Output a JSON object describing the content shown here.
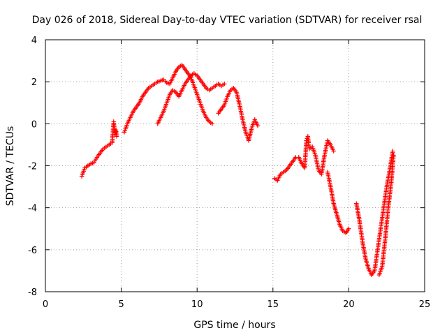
{
  "chart_data": {
    "type": "scatter",
    "title": "Day 026 of 2018, Sidereal Day-to-day VTEC variation (SDTVAR) for receiver rsal",
    "xlabel": "GPS time / hours",
    "ylabel": "SDTVAR / TECUs",
    "xlim": [
      0,
      25
    ],
    "ylim": [
      -8,
      4
    ],
    "xticks": [
      "0",
      "5",
      "10",
      "15",
      "20",
      "25"
    ],
    "yticks": [
      "-8",
      "-6",
      "-4",
      "-2",
      "0",
      "2",
      "4"
    ],
    "grid": true,
    "marker": "+",
    "color": "#ff0000",
    "series": [
      {
        "x": [
          2.4,
          2.6,
          2.8,
          3.0,
          3.2,
          3.4,
          3.6,
          3.8,
          4.0,
          4.2,
          4.4,
          4.5,
          4.55,
          4.6,
          4.65,
          4.7
        ],
        "y": [
          -2.5,
          -2.1,
          -2.0,
          -1.9,
          -1.85,
          -1.6,
          -1.4,
          -1.2,
          -1.1,
          -1.0,
          -0.9,
          0.1,
          -0.2,
          -0.5,
          -0.3,
          -0.6
        ]
      },
      {
        "x": [
          5.2,
          5.4,
          5.6,
          5.8,
          6.0,
          6.2,
          6.4,
          6.6,
          6.8,
          7.0,
          7.2,
          7.4,
          7.6,
          7.8,
          8.0,
          8.2,
          8.4,
          8.6,
          8.8,
          9.0,
          9.2,
          9.4,
          9.6,
          9.8,
          10.0,
          10.2,
          10.4,
          10.6,
          10.8,
          11.0
        ],
        "y": [
          -0.4,
          0.0,
          0.3,
          0.6,
          0.8,
          1.0,
          1.3,
          1.5,
          1.7,
          1.8,
          1.9,
          2.0,
          2.05,
          2.1,
          1.95,
          1.9,
          2.2,
          2.5,
          2.7,
          2.8,
          2.6,
          2.4,
          2.2,
          1.8,
          1.4,
          1.0,
          0.6,
          0.3,
          0.1,
          0.0
        ]
      },
      {
        "x": [
          7.4,
          7.6,
          7.8,
          8.0,
          8.2,
          8.4,
          8.6,
          8.8,
          9.0,
          9.2,
          9.4,
          9.6,
          9.8,
          10.0,
          10.2,
          10.4,
          10.6,
          10.8,
          11.0,
          11.2,
          11.4,
          11.6,
          11.8
        ],
        "y": [
          0.0,
          0.3,
          0.6,
          1.0,
          1.4,
          1.6,
          1.5,
          1.3,
          1.6,
          1.9,
          2.1,
          2.3,
          2.4,
          2.3,
          2.1,
          1.9,
          1.7,
          1.6,
          1.7,
          1.8,
          1.9,
          1.8,
          1.9
        ]
      },
      {
        "x": [
          11.4,
          11.6,
          11.8,
          12.0,
          12.2,
          12.4,
          12.6,
          12.8,
          13.0,
          13.2,
          13.4,
          13.6,
          13.8,
          14.0
        ],
        "y": [
          0.5,
          0.7,
          0.9,
          1.3,
          1.6,
          1.7,
          1.5,
          0.9,
          0.2,
          -0.4,
          -0.8,
          -0.2,
          0.2,
          -0.1
        ]
      },
      {
        "x": [
          15.1,
          15.3,
          15.5,
          15.7,
          15.9,
          16.1,
          16.3,
          16.5,
          16.7,
          16.9,
          17.1,
          17.2,
          17.3,
          17.4,
          17.6,
          17.8,
          18.0,
          18.2,
          18.4,
          18.6,
          18.8,
          19.0
        ],
        "y": [
          -2.6,
          -2.7,
          -2.4,
          -2.3,
          -2.2,
          -2.0,
          -1.8,
          -1.6,
          -1.6,
          -1.9,
          -2.1,
          -0.8,
          -0.6,
          -1.2,
          -1.1,
          -1.5,
          -2.2,
          -2.4,
          -1.5,
          -0.8,
          -1.0,
          -1.3
        ]
      },
      {
        "x": [
          18.6,
          18.8,
          19.0,
          19.2,
          19.4,
          19.6,
          19.8,
          20.0
        ],
        "y": [
          -2.3,
          -3.0,
          -3.8,
          -4.3,
          -4.8,
          -5.1,
          -5.2,
          -5.0
        ]
      },
      {
        "x": [
          20.5,
          20.7,
          20.9,
          21.1,
          21.3,
          21.5,
          21.7,
          21.9,
          22.1,
          22.3,
          22.5,
          22.7,
          22.9
        ],
        "y": [
          -3.8,
          -4.6,
          -5.6,
          -6.4,
          -6.9,
          -7.2,
          -7.0,
          -6.0,
          -5.0,
          -4.0,
          -3.0,
          -2.2,
          -1.3
        ]
      },
      {
        "x": [
          22.0,
          22.2,
          22.4,
          22.6,
          22.8,
          22.95
        ],
        "y": [
          -7.2,
          -6.8,
          -5.5,
          -4.0,
          -2.8,
          -1.5
        ]
      }
    ]
  }
}
